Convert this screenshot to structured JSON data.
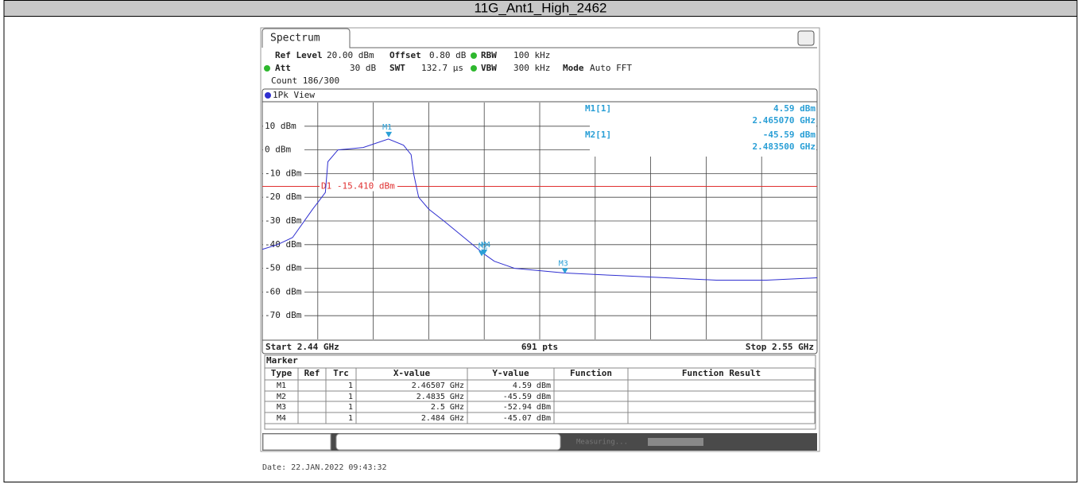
{
  "title": "11G_Ant1_High_2462",
  "tab": "Spectrum",
  "settings": {
    "row1": [
      "Ref Level",
      "20.00 dBm",
      "Offset",
      "0.80 dB",
      "RBW",
      "100 kHz"
    ],
    "row2": [
      "Att",
      "30 dB",
      "SWT",
      "132.7 µs",
      "VBW",
      "300 kHz",
      "Mode",
      "Auto FFT"
    ],
    "row3": "Count 186/300"
  },
  "view": "1Pk View",
  "readout": [
    {
      "name": "M1[1]",
      "y": "4.59 dBm",
      "x": "2.465070 GHz"
    },
    {
      "name": "M2[1]",
      "y": "-45.59 dBm",
      "x": "2.483500 GHz"
    }
  ],
  "chart_data": {
    "type": "line",
    "x": [
      2.44,
      2.443,
      2.446,
      2.45,
      2.4525,
      2.453,
      2.455,
      2.46,
      2.465,
      2.468,
      2.4695,
      2.47,
      2.471,
      2.473,
      2.476,
      2.48,
      2.484,
      2.486,
      2.49,
      2.5,
      2.51,
      2.52,
      2.53,
      2.54,
      2.55
    ],
    "values": [
      -42,
      -40,
      -37,
      -25,
      -18,
      -5,
      0,
      1,
      4.6,
      2,
      -2,
      -10,
      -20,
      -25,
      -30,
      -37,
      -44,
      -47,
      -50,
      -52,
      -53,
      -54,
      -55,
      -55,
      -54
    ],
    "color": "#2f2fd0",
    "xlim": [
      2.44,
      2.55
    ],
    "ylim": [
      -80,
      20
    ],
    "yticks": [
      {
        "value": 10,
        "label": "10 dBm"
      },
      {
        "value": 0,
        "label": "0 dBm"
      },
      {
        "value": -10,
        "label": "-10 dBm"
      },
      {
        "value": -20,
        "label": "-20 dBm"
      },
      {
        "value": -30,
        "label": "-30 dBm"
      },
      {
        "value": -40,
        "label": "-40 dBm"
      },
      {
        "value": -50,
        "label": "-50 dBm"
      },
      {
        "value": -60,
        "label": "-60 dBm"
      },
      {
        "value": -70,
        "label": "-70 dBm"
      }
    ],
    "start_label": "Start 2.44 GHz",
    "points_label": "691 pts",
    "stop_label": "Stop 2.55 GHz",
    "display_line": {
      "label": "D1 -15.410 dBm",
      "value": -15.41,
      "color": "#e03030"
    },
    "markers": [
      {
        "name": "M1",
        "x": 2.46507,
        "y": 4.59
      },
      {
        "name": "M2",
        "x": 2.4835,
        "y": -45.59
      },
      {
        "name": "M3",
        "x": 2.5,
        "y": -52.94
      },
      {
        "name": "M4",
        "x": 2.484,
        "y": -45.07
      }
    ]
  },
  "marker_table": {
    "title": "Marker",
    "columns": [
      "Type",
      "Ref",
      "Trc",
      "X-value",
      "Y-value",
      "Function",
      "Function Result"
    ],
    "rows": [
      [
        "M1",
        "",
        "1",
        "2.46507 GHz",
        "4.59 dBm",
        "",
        ""
      ],
      [
        "M2",
        "",
        "1",
        "2.4835 GHz",
        "-45.59 dBm",
        "",
        ""
      ],
      [
        "M3",
        "",
        "1",
        "2.5 GHz",
        "-52.94 dBm",
        "",
        ""
      ],
      [
        "M4",
        "",
        "1",
        "2.484 GHz",
        "-45.07 dBm",
        "",
        ""
      ]
    ]
  },
  "status": "Measuring...",
  "footer": "Date: 22.JAN.2022  09:43:32"
}
